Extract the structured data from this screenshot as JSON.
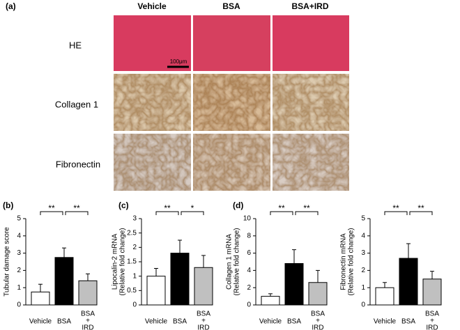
{
  "panel_a": {
    "label": "(a)",
    "columns": [
      "Vehicle",
      "BSA",
      "BSA+IRD"
    ],
    "rows": [
      "HE",
      "Collagen 1",
      "Fibronectin"
    ],
    "scale_bar": "100μm"
  },
  "chart_data": [
    {
      "type": "bar",
      "panel": "(b)",
      "ylabel": [
        "Tubular damage score"
      ],
      "categories": [
        [
          "Vehicle"
        ],
        [
          "BSA"
        ],
        [
          "BSA",
          "+",
          "IRD"
        ]
      ],
      "values": [
        0.75,
        2.75,
        1.4
      ],
      "errors": [
        0.45,
        0.55,
        0.4
      ],
      "colors": [
        "#ffffff",
        "#000000",
        "#c0c0c0"
      ],
      "ylim": [
        0,
        5
      ],
      "yticks": [
        0,
        1,
        2,
        3,
        4,
        5
      ],
      "significance": [
        "**",
        "**"
      ]
    },
    {
      "type": "bar",
      "panel": "(c)",
      "ylabel": [
        "Lipocalin-2 mRNA",
        "(Relative fold change)"
      ],
      "categories": [
        [
          "Vehicle"
        ],
        [
          "BSA"
        ],
        [
          "BSA",
          "+",
          "IRD"
        ]
      ],
      "values": [
        1.0,
        1.8,
        1.3
      ],
      "errors": [
        0.27,
        0.45,
        0.42
      ],
      "colors": [
        "#ffffff",
        "#000000",
        "#c0c0c0"
      ],
      "ylim": [
        0,
        3
      ],
      "yticks": [
        0,
        0.5,
        1,
        1.5,
        2,
        2.5,
        3
      ],
      "significance": [
        "**",
        "*"
      ]
    },
    {
      "type": "bar",
      "panel": "(d)",
      "ylabel": [
        "Collagen 1 mRNA",
        "(Relative fold change)"
      ],
      "categories": [
        [
          "Vehicle"
        ],
        [
          "BSA"
        ],
        [
          "BSA",
          "+",
          "IRD"
        ]
      ],
      "values": [
        1.0,
        4.8,
        2.6
      ],
      "errors": [
        0.3,
        1.6,
        1.4
      ],
      "colors": [
        "#ffffff",
        "#000000",
        "#c0c0c0"
      ],
      "ylim": [
        0,
        10
      ],
      "yticks": [
        0,
        2,
        4,
        6,
        8,
        10
      ],
      "significance": [
        "**",
        "**"
      ]
    },
    {
      "type": "bar",
      "ylabel": [
        "Fibronectin mRNA",
        "(Relative fold change)"
      ],
      "categories": [
        [
          "Vehicle"
        ],
        [
          "BSA"
        ],
        [
          "BSA",
          "+",
          "IRD"
        ]
      ],
      "values": [
        1.0,
        2.7,
        1.5
      ],
      "errors": [
        0.3,
        0.85,
        0.45
      ],
      "colors": [
        "#ffffff",
        "#000000",
        "#c0c0c0"
      ],
      "ylim": [
        0,
        5
      ],
      "yticks": [
        0,
        1,
        2,
        3,
        4,
        5
      ],
      "significance": [
        "**",
        "**"
      ]
    }
  ]
}
